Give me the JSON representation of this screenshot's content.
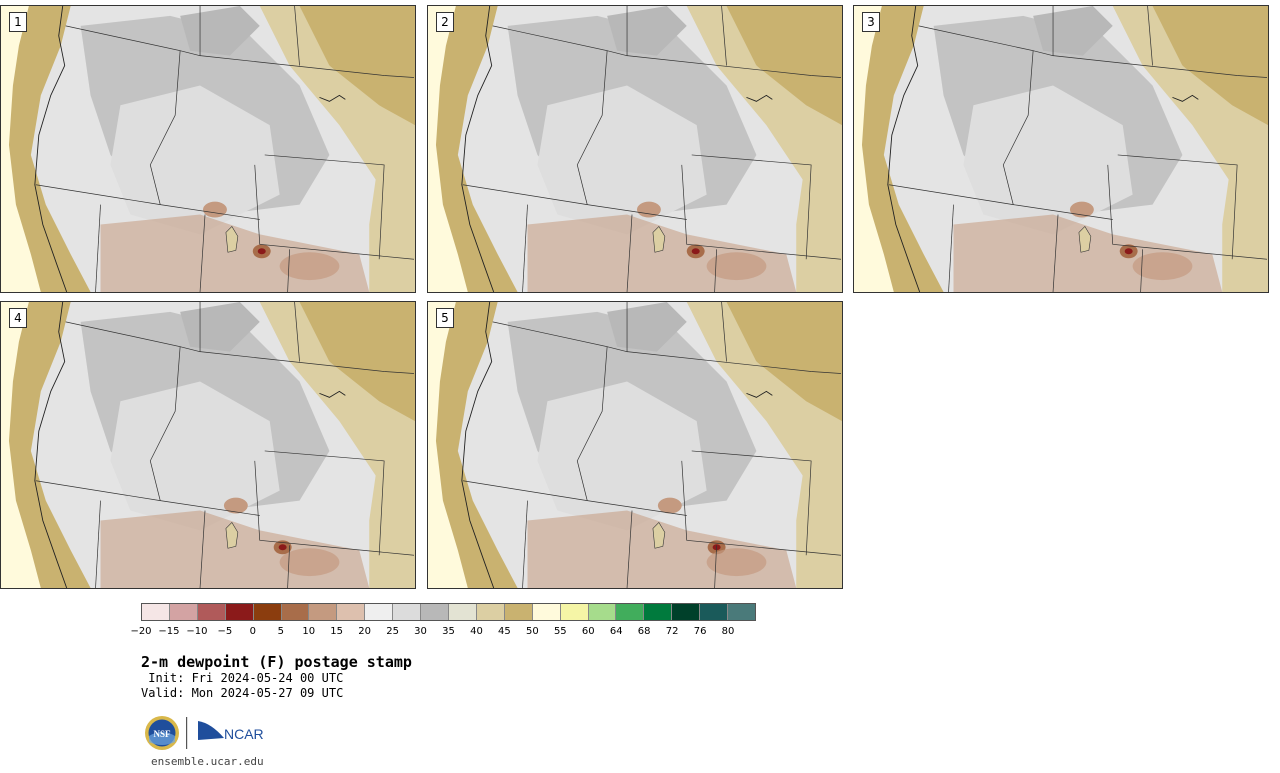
{
  "panels": [
    {
      "label": "1"
    },
    {
      "label": "2"
    },
    {
      "label": "3"
    },
    {
      "label": "4"
    },
    {
      "label": "5"
    }
  ],
  "legend": {
    "colors": [
      "#f5e6e6",
      "#d3a3a3",
      "#b05a5a",
      "#8b1a1a",
      "#8b3d0e",
      "#a86d4a",
      "#c49a80",
      "#ddc0ae",
      "#efefef",
      "#dcdcdc",
      "#b8b8b8",
      "#e3e3d3",
      "#dccfa3",
      "#c9b270",
      "#fffadc",
      "#f5f5a6",
      "#a6dc8c",
      "#41ad5c",
      "#007a3d",
      "#00402a",
      "#1a5a5a",
      "#4a7a7a"
    ],
    "ticks": [
      "−20",
      "−15",
      "−10",
      "−5",
      "0",
      "5",
      "10",
      "15",
      "20",
      "25",
      "30",
      "35",
      "40",
      "45",
      "50",
      "55",
      "60",
      "64",
      "68",
      "72",
      "76",
      "80"
    ]
  },
  "title": "2-m dewpoint (F) postage stamp",
  "init": " Init: Fri 2024-05-24 00 UTC",
  "valid": "Valid: Mon 2024-05-27 09 UTC",
  "logos": {
    "nsf": "NSF",
    "ncar": "NCAR"
  },
  "site": "ensemble.ucar.edu",
  "colors": {
    "land_tan": "#c9b270",
    "light_tan": "#dccfa3",
    "gray": "#b8b8b8",
    "light_gray": "#e4e4e4",
    "coast_yellow": "#fffadc",
    "brown": "#c49a80",
    "dark_red": "#8b1a1a"
  }
}
